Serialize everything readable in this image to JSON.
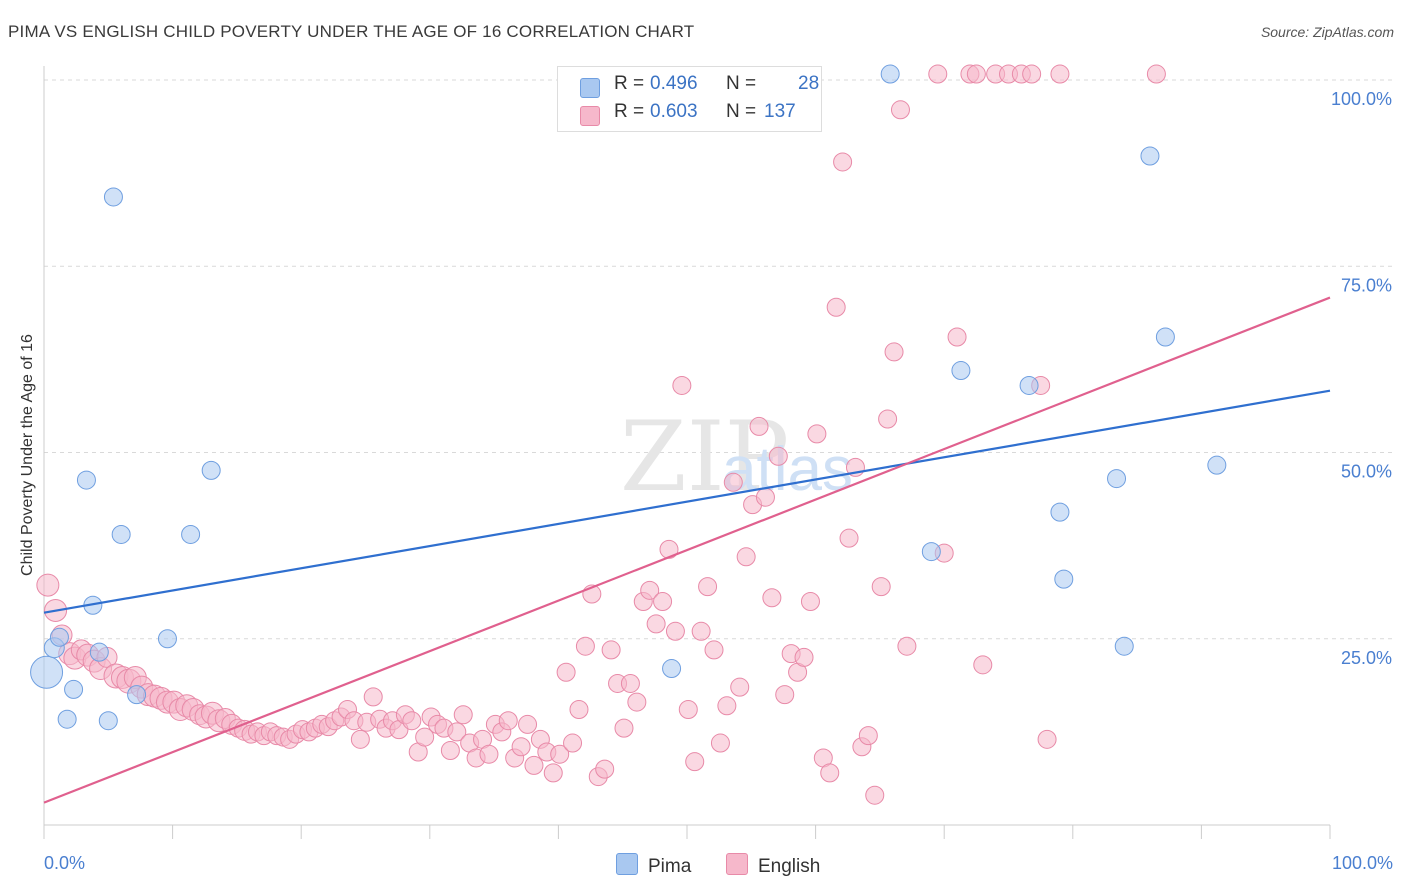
{
  "title": "PIMA VS ENGLISH CHILD POVERTY UNDER THE AGE OF 16 CORRELATION CHART",
  "source": "Source: ZipAtlas.com",
  "watermark_zip": "ZIP",
  "watermark_atlas": "atlas",
  "legend": {
    "rows": [
      {
        "r_label": "R =",
        "r_value": "0.496",
        "n_label": "N =",
        "n_value": "28"
      },
      {
        "r_label": "R =",
        "r_value": "0.603",
        "n_label": "N =",
        "n_value": "137"
      }
    ]
  },
  "bottom_legend": {
    "pima": "Pima",
    "english": "English"
  },
  "colors": {
    "pima_fill": "#a9c8f0",
    "pima_stroke": "#6f9fe0",
    "pima_line": "#2f6fcf",
    "english_fill": "#f6b8cb",
    "english_stroke": "#e88aa8",
    "english_line": "#e0608e",
    "grid": "#d9d9d9",
    "tick_text": "#4a7fd0"
  },
  "chart_data": {
    "type": "scatter",
    "xlabel": "",
    "ylabel": "Child Poverty Under the Age of 16",
    "xlim": [
      0,
      100
    ],
    "ylim": [
      0,
      100
    ],
    "x_tick_labels": {
      "0": "0.0%",
      "100": "100.0%"
    },
    "y_tick_labels": [
      {
        "value": 25,
        "label": "25.0%"
      },
      {
        "value": 50,
        "label": "50.0%"
      },
      {
        "value": 75,
        "label": "75.0%"
      },
      {
        "value": 100,
        "label": "100.0%"
      }
    ],
    "grid": true,
    "series": [
      {
        "name": "Pima",
        "trend": {
          "x0": 0,
          "y0": 28.5,
          "x1": 100,
          "y1": 58.3
        },
        "points": [
          [
            0.2,
            20.5,
            16
          ],
          [
            0.8,
            23.8,
            10
          ],
          [
            1.2,
            25.2,
            9
          ],
          [
            1.8,
            14.2,
            9
          ],
          [
            2.3,
            18.2,
            9
          ],
          [
            3.3,
            46.3,
            9
          ],
          [
            3.8,
            29.5,
            9
          ],
          [
            4.3,
            23.2,
            9
          ],
          [
            5.0,
            14.0,
            9
          ],
          [
            5.4,
            84.3,
            9
          ],
          [
            6.0,
            39.0,
            9
          ],
          [
            7.2,
            17.5,
            9
          ],
          [
            9.6,
            25.0,
            9
          ],
          [
            11.4,
            39.0,
            9
          ],
          [
            13.0,
            47.6,
            9
          ],
          [
            48.8,
            21.0,
            9
          ],
          [
            65.8,
            100.8,
            9
          ],
          [
            69.0,
            36.7,
            9
          ],
          [
            71.3,
            61.0,
            9
          ],
          [
            76.6,
            59.0,
            9
          ],
          [
            79.0,
            42.0,
            9
          ],
          [
            79.3,
            33.0,
            9
          ],
          [
            83.4,
            46.5,
            9
          ],
          [
            84.0,
            24.0,
            9
          ],
          [
            86.0,
            89.8,
            9
          ],
          [
            87.2,
            65.5,
            9
          ],
          [
            91.2,
            48.3,
            9
          ]
        ]
      },
      {
        "name": "English",
        "trend": {
          "x0": 0,
          "y0": 3.0,
          "x1": 100,
          "y1": 70.8
        },
        "points": [
          [
            0.3,
            32.2,
            11
          ],
          [
            0.9,
            28.8,
            11
          ],
          [
            1.4,
            25.5,
            10
          ],
          [
            2.0,
            23.0,
            11
          ],
          [
            2.4,
            22.4,
            11
          ],
          [
            2.9,
            23.5,
            10
          ],
          [
            3.4,
            22.8,
            11
          ],
          [
            3.9,
            22.0,
            11
          ],
          [
            4.4,
            21.0,
            11
          ],
          [
            4.9,
            22.5,
            10
          ],
          [
            5.6,
            20.0,
            12
          ],
          [
            6.1,
            19.8,
            11
          ],
          [
            6.6,
            19.3,
            12
          ],
          [
            7.1,
            19.8,
            11
          ],
          [
            7.6,
            18.5,
            11
          ],
          [
            8.1,
            17.5,
            11
          ],
          [
            8.6,
            17.3,
            11
          ],
          [
            9.1,
            17.0,
            11
          ],
          [
            9.6,
            16.5,
            11
          ],
          [
            10.1,
            16.5,
            11
          ],
          [
            10.6,
            15.5,
            11
          ],
          [
            11.1,
            16.0,
            11
          ],
          [
            11.6,
            15.5,
            11
          ],
          [
            12.1,
            14.8,
            10
          ],
          [
            12.6,
            14.5,
            11
          ],
          [
            13.1,
            15.0,
            11
          ],
          [
            13.6,
            14.0,
            11
          ],
          [
            14.1,
            14.3,
            10
          ],
          [
            14.6,
            13.5,
            10
          ],
          [
            15.1,
            13.0,
            9
          ],
          [
            15.6,
            12.7,
            10
          ],
          [
            16.1,
            12.2,
            9
          ],
          [
            16.6,
            12.5,
            9
          ],
          [
            17.1,
            12.0,
            9
          ],
          [
            17.6,
            12.5,
            9
          ],
          [
            18.1,
            12.0,
            9
          ],
          [
            18.6,
            11.8,
            9
          ],
          [
            19.1,
            11.5,
            9
          ],
          [
            19.6,
            12.2,
            9
          ],
          [
            20.1,
            12.8,
            9
          ],
          [
            20.6,
            12.5,
            9
          ],
          [
            21.1,
            13.0,
            9
          ],
          [
            21.6,
            13.5,
            9
          ],
          [
            22.1,
            13.2,
            9
          ],
          [
            22.6,
            14.0,
            9
          ],
          [
            23.1,
            14.5,
            9
          ],
          [
            23.6,
            15.5,
            9
          ],
          [
            24.1,
            14.0,
            9
          ],
          [
            24.6,
            11.5,
            9
          ],
          [
            25.1,
            13.8,
            9
          ],
          [
            25.6,
            17.2,
            9
          ],
          [
            26.1,
            14.2,
            9
          ],
          [
            26.6,
            13.0,
            9
          ],
          [
            27.1,
            14.0,
            9
          ],
          [
            27.6,
            12.8,
            9
          ],
          [
            28.1,
            14.8,
            9
          ],
          [
            28.6,
            14.0,
            9
          ],
          [
            29.1,
            9.8,
            9
          ],
          [
            29.6,
            11.8,
            9
          ],
          [
            30.1,
            14.5,
            9
          ],
          [
            30.6,
            13.5,
            9
          ],
          [
            31.1,
            13.0,
            9
          ],
          [
            31.6,
            10.0,
            9
          ],
          [
            32.1,
            12.5,
            9
          ],
          [
            32.6,
            14.8,
            9
          ],
          [
            33.1,
            11.0,
            9
          ],
          [
            33.6,
            9.0,
            9
          ],
          [
            34.1,
            11.5,
            9
          ],
          [
            34.6,
            9.5,
            9
          ],
          [
            35.1,
            13.5,
            9
          ],
          [
            35.6,
            12.5,
            9
          ],
          [
            36.1,
            14.0,
            9
          ],
          [
            36.6,
            9.0,
            9
          ],
          [
            37.1,
            10.5,
            9
          ],
          [
            37.6,
            13.5,
            9
          ],
          [
            38.1,
            8.0,
            9
          ],
          [
            38.6,
            11.5,
            9
          ],
          [
            39.1,
            9.8,
            9
          ],
          [
            39.6,
            7.0,
            9
          ],
          [
            40.1,
            9.5,
            9
          ],
          [
            40.6,
            20.5,
            9
          ],
          [
            41.1,
            11.0,
            9
          ],
          [
            41.6,
            15.5,
            9
          ],
          [
            42.1,
            24.0,
            9
          ],
          [
            42.6,
            31.0,
            9
          ],
          [
            43.1,
            6.5,
            9
          ],
          [
            43.6,
            7.5,
            9
          ],
          [
            44.1,
            23.5,
            9
          ],
          [
            44.6,
            19.0,
            9
          ],
          [
            45.1,
            13.0,
            9
          ],
          [
            45.6,
            19.0,
            9
          ],
          [
            46.1,
            16.5,
            9
          ],
          [
            46.6,
            30.0,
            9
          ],
          [
            47.1,
            31.5,
            9
          ],
          [
            47.6,
            27.0,
            9
          ],
          [
            48.1,
            30.0,
            9
          ],
          [
            48.6,
            37.0,
            9
          ],
          [
            49.1,
            26.0,
            9
          ],
          [
            49.6,
            59.0,
            9
          ],
          [
            50.1,
            15.5,
            9
          ],
          [
            50.6,
            8.5,
            9
          ],
          [
            51.1,
            26.0,
            9
          ],
          [
            51.6,
            32.0,
            9
          ],
          [
            52.1,
            23.5,
            9
          ],
          [
            52.6,
            11.0,
            9
          ],
          [
            53.1,
            16.0,
            9
          ],
          [
            53.6,
            46.0,
            9
          ],
          [
            54.1,
            18.5,
            9
          ],
          [
            54.6,
            36.0,
            9
          ],
          [
            55.1,
            43.0,
            9
          ],
          [
            55.6,
            53.5,
            9
          ],
          [
            56.1,
            44.0,
            9
          ],
          [
            56.6,
            30.5,
            9
          ],
          [
            57.1,
            49.5,
            9
          ],
          [
            57.6,
            17.5,
            9
          ],
          [
            58.1,
            23.0,
            9
          ],
          [
            58.6,
            20.5,
            9
          ],
          [
            59.1,
            22.5,
            9
          ],
          [
            59.6,
            30.0,
            9
          ],
          [
            60.1,
            52.5,
            9
          ],
          [
            60.6,
            9.0,
            9
          ],
          [
            61.1,
            7.0,
            9
          ],
          [
            61.6,
            69.5,
            9
          ],
          [
            62.1,
            89.0,
            9
          ],
          [
            62.6,
            38.5,
            9
          ],
          [
            63.1,
            48.0,
            9
          ],
          [
            63.6,
            10.5,
            9
          ],
          [
            64.1,
            12.0,
            9
          ],
          [
            64.6,
            4.0,
            9
          ],
          [
            65.1,
            32.0,
            9
          ],
          [
            65.6,
            54.5,
            9
          ],
          [
            66.1,
            63.5,
            9
          ],
          [
            66.6,
            96.0,
            9
          ],
          [
            67.1,
            24.0,
            9
          ],
          [
            69.5,
            100.8,
            9
          ],
          [
            70.0,
            36.5,
            9
          ],
          [
            71.0,
            65.5,
            9
          ],
          [
            72.0,
            100.8,
            9
          ],
          [
            72.5,
            100.8,
            9
          ],
          [
            73.0,
            21.5,
            9
          ],
          [
            74.0,
            100.8,
            9
          ],
          [
            75.0,
            100.8,
            9
          ],
          [
            76.0,
            100.8,
            9
          ],
          [
            76.8,
            100.8,
            9
          ],
          [
            77.5,
            59.0,
            9
          ],
          [
            78.0,
            11.5,
            9
          ],
          [
            79.0,
            100.8,
            9
          ],
          [
            86.5,
            100.8,
            9
          ]
        ]
      }
    ]
  }
}
